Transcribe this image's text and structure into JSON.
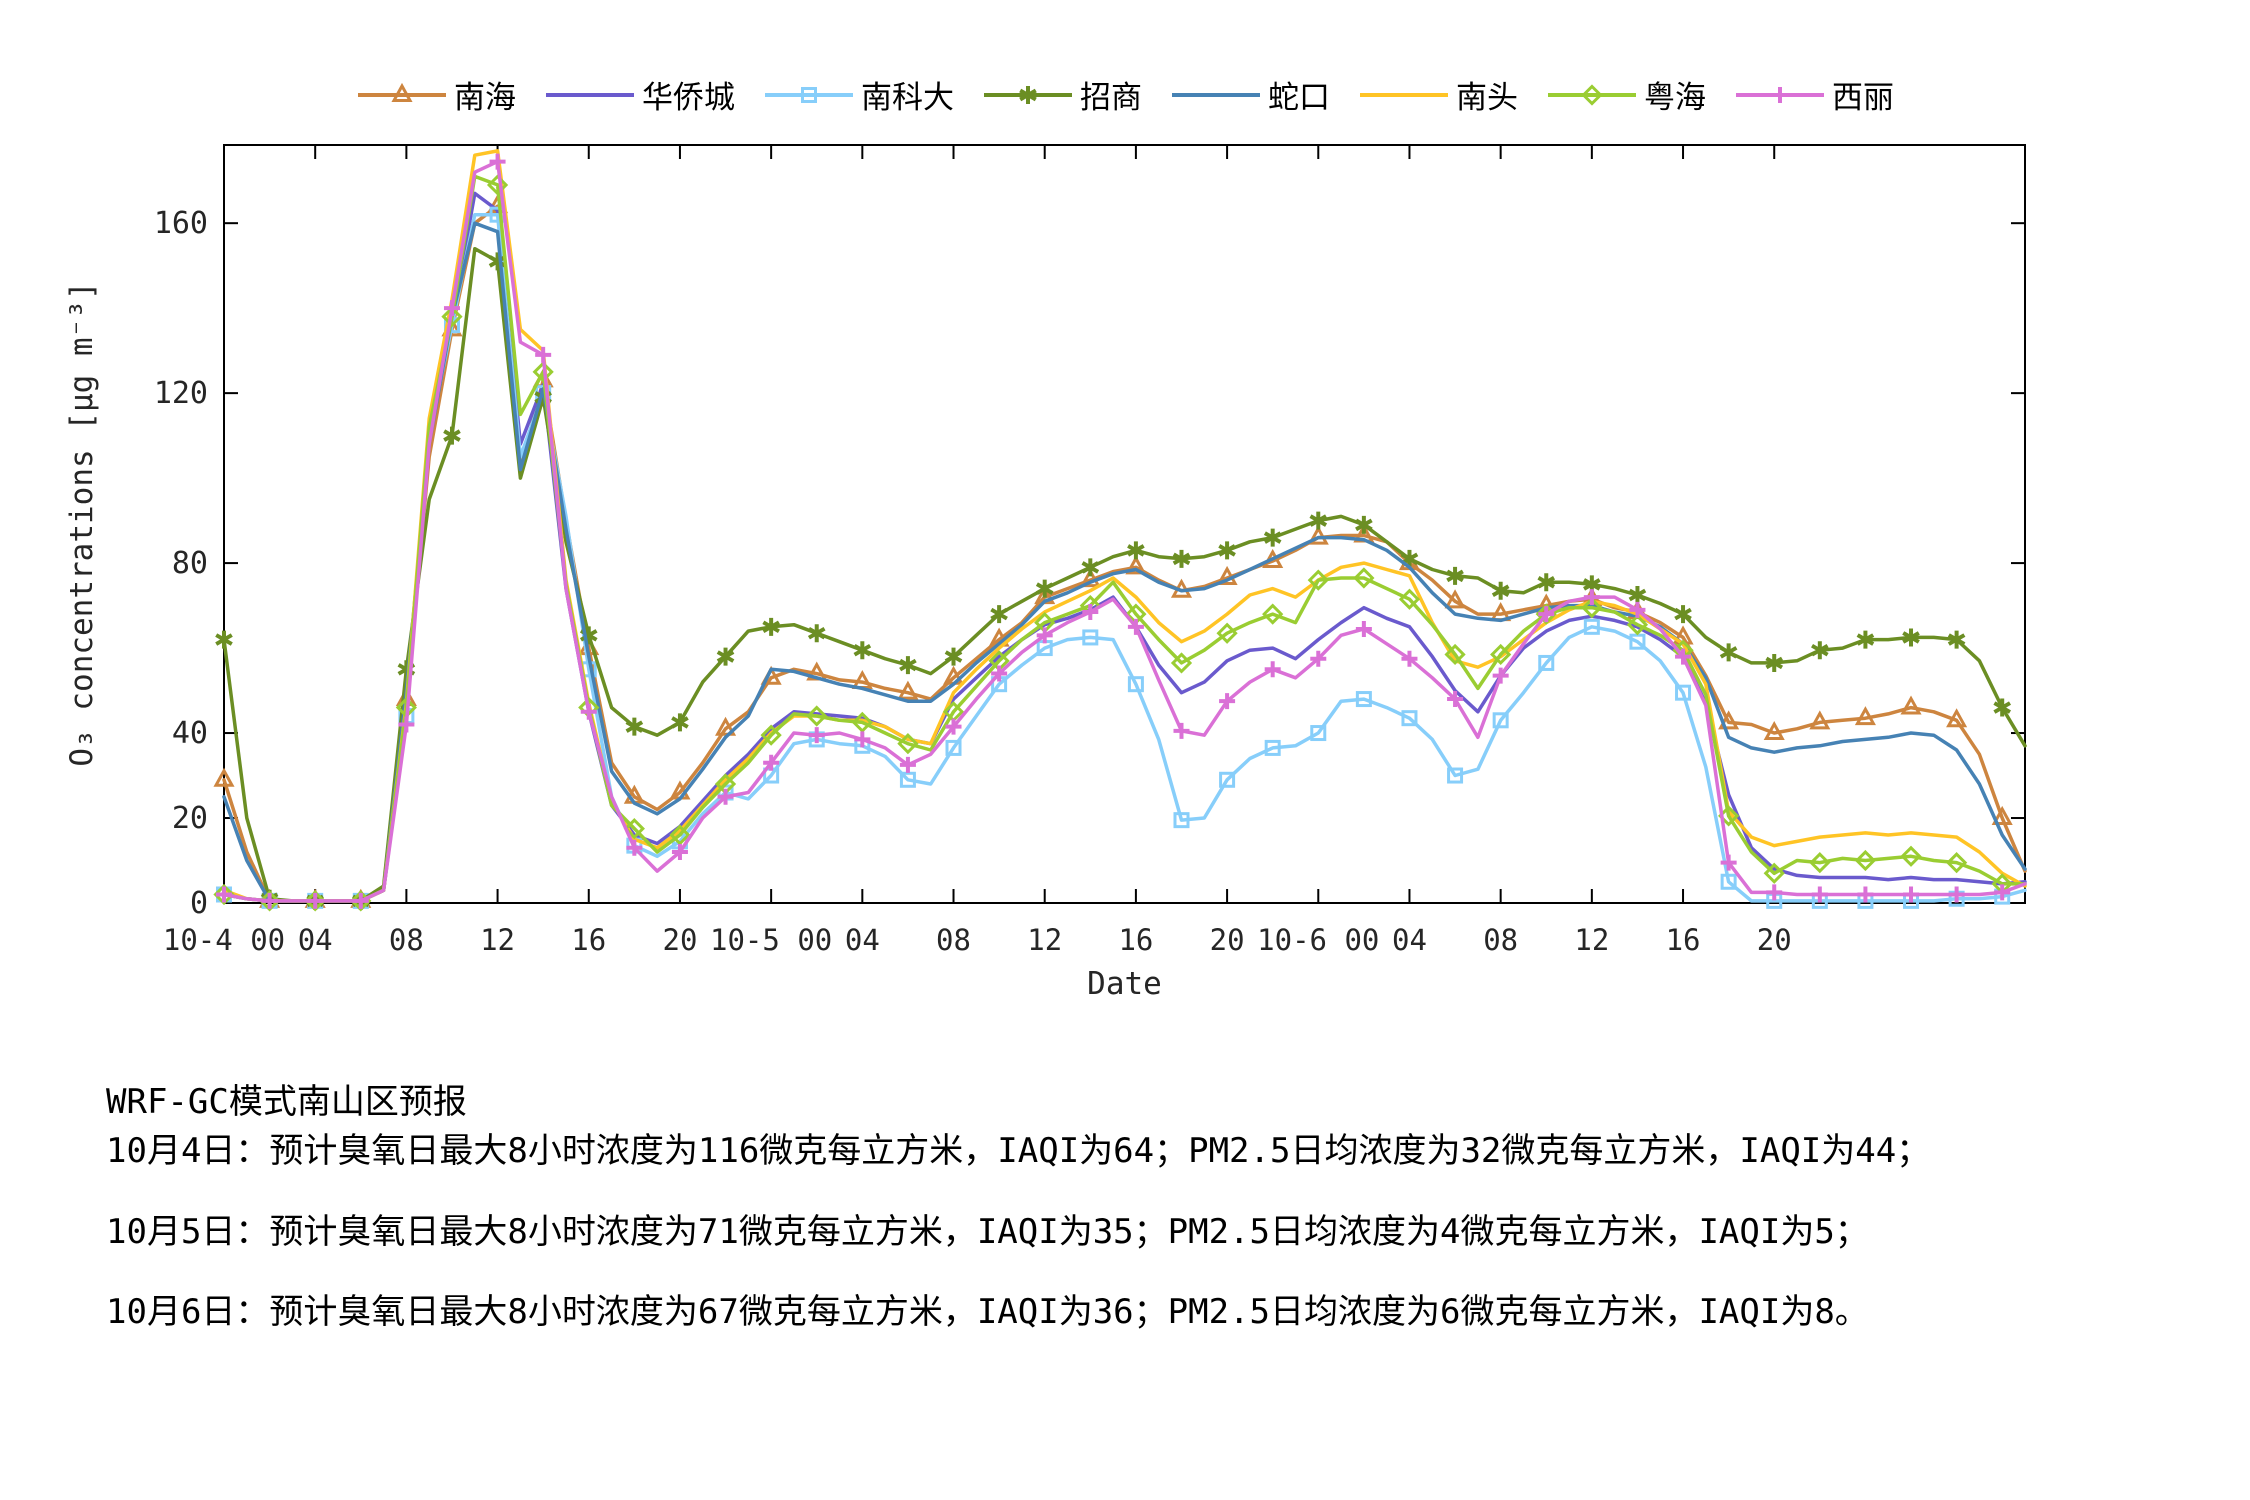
{
  "chart_data": {
    "type": "line",
    "title": "",
    "xlabel": "Date",
    "ylabel": "O₃ concentrations [μg m⁻³]",
    "x_unit": "hours since 2021-10-04 00:00",
    "x_range_hours": [
      0,
      79
    ],
    "ylim": [
      0,
      178.4
    ],
    "grid": false,
    "legend_position": "top-center",
    "y_ticks": [
      0,
      20,
      40,
      80,
      120,
      160
    ],
    "x_ticks": [
      {
        "h": 0,
        "label": "10-4 00"
      },
      {
        "h": 4,
        "label": "04"
      },
      {
        "h": 8,
        "label": "08"
      },
      {
        "h": 12,
        "label": "12"
      },
      {
        "h": 16,
        "label": "16"
      },
      {
        "h": 20,
        "label": "20"
      },
      {
        "h": 24,
        "label": "10-5 00"
      },
      {
        "h": 28,
        "label": "04"
      },
      {
        "h": 32,
        "label": "08"
      },
      {
        "h": 36,
        "label": "12"
      },
      {
        "h": 40,
        "label": "16"
      },
      {
        "h": 44,
        "label": "20"
      },
      {
        "h": 48,
        "label": "10-6 00"
      },
      {
        "h": 52,
        "label": "04"
      },
      {
        "h": 56,
        "label": "08"
      },
      {
        "h": 60,
        "label": "12"
      },
      {
        "h": 64,
        "label": "16"
      },
      {
        "h": 68,
        "label": "20"
      }
    ],
    "series": [
      {
        "name": "南海",
        "id": "nanhai",
        "color": "#CD853F",
        "marker": "triangle",
        "values": [
          29,
          12,
          0.5,
          0.5,
          0.5,
          0.5,
          0.5,
          3,
          48,
          105,
          135,
          160,
          164,
          102,
          123,
          90,
          60,
          33,
          25,
          22,
          26,
          33,
          41,
          45,
          53,
          55,
          54,
          52.5,
          52,
          50.5,
          49.5,
          48,
          53,
          57.5,
          62,
          66,
          72,
          74,
          76,
          78,
          79,
          76,
          73.5,
          74.5,
          76.5,
          78.5,
          80.5,
          83,
          86,
          86.5,
          86.5,
          85,
          80,
          76,
          71,
          68,
          68,
          69,
          70,
          71,
          71.5,
          69.5,
          68.5,
          66,
          62.5,
          53.5,
          42.5,
          42,
          40,
          41,
          42.5,
          43,
          43.5,
          44.5,
          46,
          45,
          43,
          35,
          20,
          7.5
        ]
      },
      {
        "name": "华侨城",
        "id": "huaqiaocheng",
        "color": "#6A5ACD",
        "marker": "none",
        "values": [
          2,
          1,
          0.5,
          0.5,
          0.5,
          0.5,
          0.5,
          3,
          45,
          112,
          137,
          167,
          163,
          108,
          122,
          74,
          45,
          23,
          16,
          14,
          18,
          24,
          30,
          35,
          41,
          45,
          44.5,
          44,
          43.5,
          41.5,
          38.5,
          37.5,
          48,
          53,
          58,
          62,
          65.5,
          67,
          69,
          72,
          65,
          56,
          49.5,
          52,
          57,
          59.5,
          60,
          57.5,
          62,
          66,
          69.5,
          67,
          65,
          58,
          50,
          45,
          53.5,
          60,
          64,
          66.5,
          67.5,
          66.5,
          65,
          62,
          58,
          47,
          25.5,
          13,
          8,
          6.5,
          6,
          6,
          6,
          5.5,
          6,
          5.5,
          5.5,
          5,
          4.5,
          5
        ]
      },
      {
        "name": "南科大",
        "id": "nankeda",
        "color": "#87CEFA",
        "marker": "square",
        "values": [
          2,
          1,
          0.5,
          0.5,
          0.5,
          0.5,
          0.5,
          3,
          44,
          110,
          136,
          162,
          162,
          105,
          120,
          91,
          55,
          25,
          13.5,
          11,
          14.5,
          21,
          26,
          24.5,
          30,
          37.5,
          38.5,
          37.5,
          37,
          34.5,
          29,
          28,
          36.5,
          44,
          51.5,
          56,
          60,
          62,
          62.5,
          62,
          51.5,
          38.5,
          19.5,
          20,
          29,
          34,
          36.5,
          37,
          40,
          47.5,
          48,
          46,
          43.5,
          38.5,
          30,
          31.5,
          43,
          49.5,
          56.5,
          62.5,
          65,
          64,
          61.5,
          57,
          49.5,
          32,
          5,
          0.5,
          0.5,
          0.5,
          0.5,
          0.5,
          0.5,
          0.5,
          0.5,
          0.5,
          1,
          1,
          1.5,
          3
        ]
      },
      {
        "name": "招商",
        "id": "zhaoshang",
        "color": "#6B8E23",
        "marker": "asterisk",
        "values": [
          62,
          20,
          1,
          0.5,
          0.5,
          0.5,
          0.5,
          4,
          55,
          95,
          110,
          154,
          151,
          100,
          119,
          85,
          63,
          46,
          41.5,
          39.5,
          42.5,
          52,
          58,
          64,
          65,
          65.5,
          63.5,
          61.5,
          59.5,
          57.5,
          56,
          54,
          58,
          63,
          68,
          71,
          74,
          76.5,
          79,
          81.5,
          83,
          81.5,
          81,
          81.5,
          83,
          85,
          86,
          88,
          90,
          91,
          89,
          85,
          81,
          78.5,
          77,
          76.5,
          73.5,
          73,
          75.5,
          75.5,
          75,
          74,
          72.5,
          70.5,
          68,
          62.5,
          59,
          56.5,
          56.5,
          57,
          59.5,
          60,
          62,
          62,
          62.5,
          62.5,
          62,
          57,
          46,
          37
        ]
      },
      {
        "name": "蛇口",
        "id": "shekou",
        "color": "#4682B4",
        "marker": "none",
        "values": [
          25,
          10,
          0.5,
          0.5,
          0.5,
          0.5,
          0.5,
          3,
          50,
          108,
          138,
          160,
          158,
          102,
          121,
          88,
          58,
          31,
          23.5,
          21,
          24.5,
          31.5,
          39,
          44,
          55,
          54.5,
          53,
          51.5,
          50.5,
          49,
          47.5,
          47.5,
          51.5,
          56.5,
          61,
          65.5,
          71,
          73,
          75.5,
          77.5,
          78.5,
          75.5,
          73.5,
          74,
          76,
          78.5,
          81,
          83.5,
          86,
          86,
          85.5,
          83,
          79,
          73,
          68,
          67,
          66.5,
          68,
          69.5,
          70,
          70,
          68.5,
          67.5,
          65,
          61,
          53,
          39,
          36.5,
          35.5,
          36.5,
          37,
          38,
          38.5,
          39,
          40,
          39.5,
          36,
          28,
          16,
          8
        ]
      },
      {
        "name": "南头",
        "id": "nantou",
        "color": "#FFC425",
        "marker": "none",
        "values": [
          3,
          1,
          0.5,
          0.5,
          0.5,
          0.5,
          0.5,
          3,
          47,
          114,
          142,
          176,
          177,
          135,
          130,
          76,
          47,
          24,
          15,
          13,
          17,
          23,
          29,
          34,
          40,
          44,
          44,
          43,
          43,
          41.5,
          38.5,
          37.5,
          49.5,
          55,
          60,
          64.5,
          68.5,
          71,
          73.5,
          76.5,
          72,
          66,
          61.5,
          64,
          68,
          72.5,
          74,
          72,
          76,
          79,
          80,
          78.5,
          77,
          66,
          57,
          55.5,
          58,
          62,
          66,
          69,
          71,
          70,
          68,
          64.5,
          61,
          51.5,
          21.5,
          15.5,
          13.5,
          14.5,
          15.5,
          16,
          16.5,
          16,
          16.5,
          16,
          15.5,
          12,
          7,
          4
        ]
      },
      {
        "name": "粤海",
        "id": "yuehai",
        "color": "#9ACD32",
        "marker": "diamond",
        "values": [
          2,
          1,
          0.5,
          0.5,
          0.5,
          0.5,
          0.5,
          3,
          46,
          112,
          138,
          171,
          169,
          115,
          125,
          75,
          46,
          23,
          17.5,
          12,
          16,
          22.5,
          28,
          33,
          39.5,
          44.5,
          44,
          43,
          42.5,
          40,
          37.5,
          36,
          45,
          51,
          57,
          62,
          66,
          68,
          70,
          75.5,
          68,
          62,
          56.5,
          59.5,
          63.5,
          66,
          68,
          66,
          76,
          76.5,
          76.5,
          74,
          71.5,
          65.5,
          58.5,
          50.5,
          58.5,
          64,
          68,
          69.5,
          69.5,
          68.5,
          65.5,
          63,
          59.5,
          49,
          20.5,
          12,
          7,
          10,
          9.5,
          10.5,
          10,
          10.5,
          11,
          10,
          9.5,
          7.5,
          4.5,
          4.5
        ]
      },
      {
        "name": "西丽",
        "id": "xili",
        "color": "#DA70D6",
        "marker": "plus",
        "values": [
          2,
          1,
          0.5,
          0.5,
          0.5,
          0.5,
          0.5,
          3,
          42,
          108,
          140,
          172,
          174.5,
          132,
          129,
          74,
          45,
          25,
          13,
          7.5,
          12,
          20,
          25,
          26,
          33,
          40,
          39.5,
          40,
          38.5,
          36.5,
          32.5,
          35,
          41.5,
          48,
          54,
          59,
          63,
          66,
          68.5,
          71.5,
          65,
          52.5,
          40.5,
          39.5,
          47.5,
          52,
          55,
          53,
          57.5,
          63,
          64.5,
          61,
          57.5,
          53,
          48,
          39,
          53.5,
          61,
          68,
          71,
          72,
          72,
          69,
          64.5,
          58,
          46.5,
          9.5,
          2.5,
          2.5,
          2,
          2,
          2,
          2,
          2,
          2,
          2,
          2,
          2,
          2.5,
          4.5
        ]
      }
    ]
  },
  "footer": {
    "title": "WRF-GC模式南山区预报",
    "lines": [
      "10月4日：预计臭氧日最大8小时浓度为116微克每立方米，IAQI为64；PM2.5日均浓度为32微克每立方米，IAQI为44；",
      "10月5日：预计臭氧日最大8小时浓度为71微克每立方米，IAQI为35；PM2.5日均浓度为4微克每立方米，IAQI为5；",
      "10月6日：预计臭氧日最大8小时浓度为67微克每立方米，IAQI为36；PM2.5日均浓度为6微克每立方米，IAQI为8。"
    ]
  }
}
